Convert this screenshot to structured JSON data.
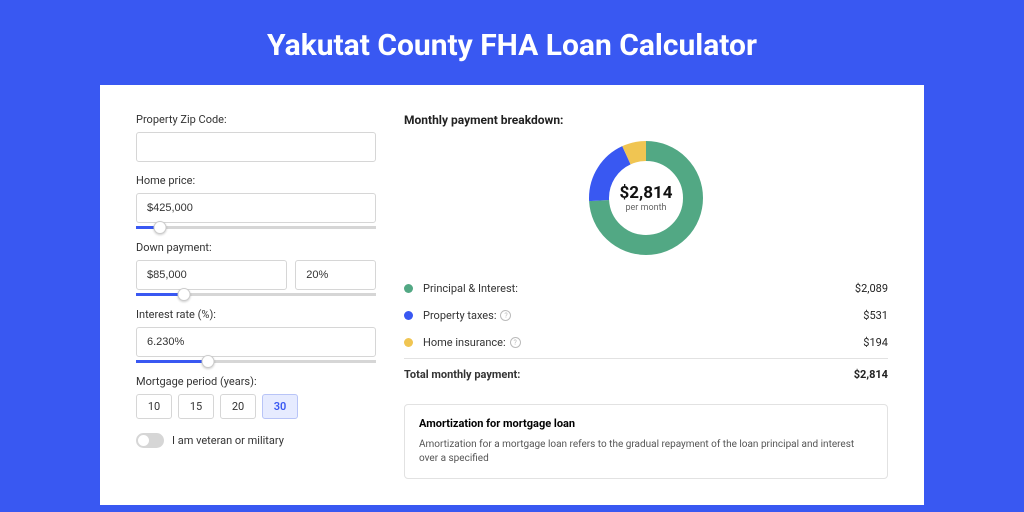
{
  "page": {
    "title": "Yakutat County FHA Loan Calculator"
  },
  "form": {
    "zip": {
      "label": "Property Zip Code:",
      "value": ""
    },
    "home_price": {
      "label": "Home price:",
      "value": "$425,000",
      "slider_pct": 10
    },
    "down_payment": {
      "label": "Down payment:",
      "value": "$85,000",
      "pct_value": "20%",
      "slider_pct": 20
    },
    "interest": {
      "label": "Interest rate (%):",
      "value": "6.230%",
      "slider_pct": 30
    },
    "period": {
      "label": "Mortgage period (years):",
      "options": [
        "10",
        "15",
        "20",
        "30"
      ],
      "selected": "30"
    },
    "veteran": {
      "label": "I am veteran or military",
      "on": false
    }
  },
  "breakdown": {
    "title": "Monthly payment breakdown:",
    "total_display": "$2,814",
    "total_sub": "per month",
    "items": [
      {
        "label": "Principal & Interest:",
        "value": "$2,089",
        "color": "#52a884",
        "pct": 74,
        "info": false
      },
      {
        "label": "Property taxes:",
        "value": "$531",
        "color": "#3958f2",
        "pct": 19,
        "info": true
      },
      {
        "label": "Home insurance:",
        "value": "$194",
        "color": "#f0c552",
        "pct": 7,
        "info": true
      }
    ],
    "total_row": {
      "label": "Total monthly payment:",
      "value": "$2,814"
    }
  },
  "amortization": {
    "title": "Amortization for mortgage loan",
    "text": "Amortization for a mortgage loan refers to the gradual repayment of the loan principal and interest over a specified"
  },
  "colors": {
    "accent": "#3958f2",
    "bg": "#3958f2"
  }
}
